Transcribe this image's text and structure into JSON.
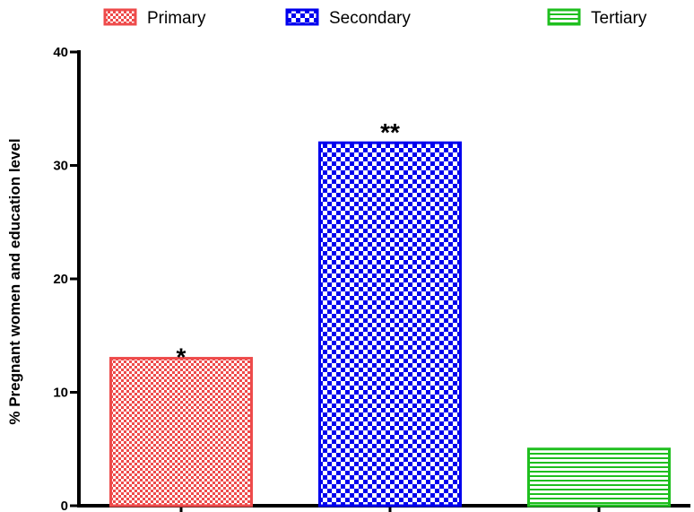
{
  "chart_data": {
    "type": "bar",
    "title": "",
    "xlabel": "",
    "ylabel": "% Pregnant women and education level",
    "categories": [
      "Primary",
      "Secondary",
      "Tertiary"
    ],
    "values": [
      13,
      32,
      5
    ],
    "annotations": [
      "*",
      "**",
      ""
    ],
    "ylim": [
      0,
      40
    ],
    "yticks": [
      0,
      10,
      20,
      30,
      40
    ],
    "grid": false,
    "legend_position": "top",
    "legend": [
      {
        "label": "Primary",
        "color": "#ee4b4b",
        "pattern": "checker-fine"
      },
      {
        "label": "Secondary",
        "color": "#0000ee",
        "pattern": "checker-coarse"
      },
      {
        "label": "Tertiary",
        "color": "#1fbf1f",
        "pattern": "horizontal-lines"
      }
    ]
  }
}
